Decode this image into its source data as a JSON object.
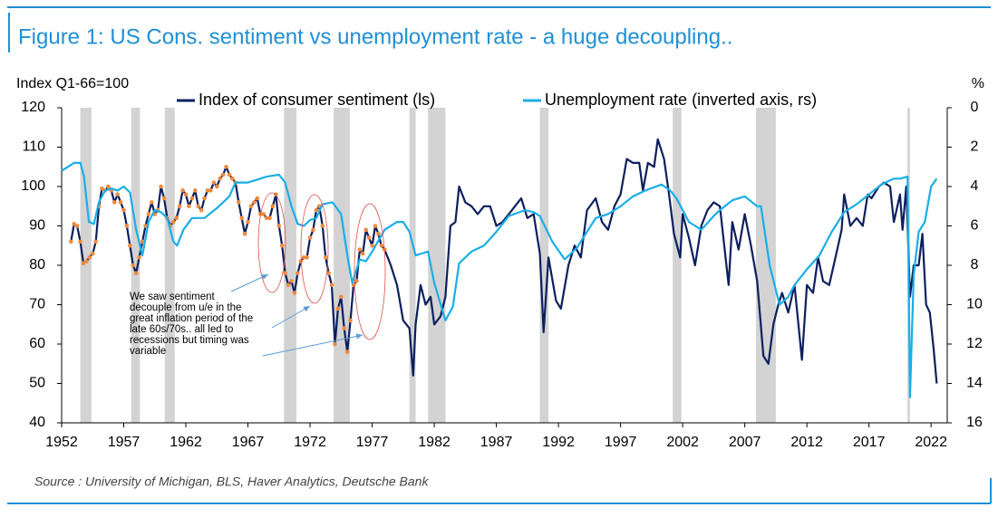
{
  "chart_data": {
    "type": "line",
    "title": "Figure 1: US Cons. sentiment vs unemployment rate - a huge decoupling..",
    "y_label": "Index Q1-66=100",
    "y2_label": "%",
    "source": "Source : University of Michigan, BLS, Haver Analytics, Deutsche Bank",
    "annotation": [
      "We saw sentiment",
      "decouple from u/e in the",
      "great inflation period of the",
      "late 60s/70s.. all led to",
      "recessions but timing was",
      "variable"
    ],
    "legend": "top",
    "xlim": [
      1952,
      2023.3
    ],
    "xticks": [
      1952,
      1957,
      1962,
      1967,
      1972,
      1977,
      1982,
      1987,
      1992,
      1997,
      2002,
      2007,
      2012,
      2017,
      2022
    ],
    "ylim": [
      40,
      120
    ],
    "yticks": [
      40,
      50,
      60,
      70,
      80,
      90,
      100,
      110,
      120
    ],
    "y2lim": [
      0,
      16
    ],
    "y2_inverted": true,
    "y2ticks": [
      0,
      2,
      4,
      6,
      8,
      10,
      12,
      14,
      16
    ],
    "recession_color": "#d3d3d3",
    "recessions": [
      [
        1953.5,
        1954.4
      ],
      [
        1957.6,
        1958.3
      ],
      [
        1960.3,
        1961.1
      ],
      [
        1969.9,
        1970.9
      ],
      [
        1973.9,
        1975.2
      ],
      [
        1980.0,
        1980.5
      ],
      [
        1981.5,
        1982.9
      ],
      [
        1990.5,
        1991.2
      ],
      [
        2001.2,
        2001.9
      ],
      [
        2007.9,
        2009.5
      ],
      [
        2020.1,
        2020.3
      ]
    ],
    "series": [
      {
        "name": "Index of consumer sentiment (ls)",
        "color": "#0b1f5e",
        "marker_color": "#f08a3c",
        "marker_xlim": [
          1952,
          1978
        ],
        "x": [
          1952.75,
          1953,
          1953.25,
          1953.5,
          1953.75,
          1954,
          1954.25,
          1954.5,
          1954.75,
          1955,
          1955.25,
          1955.5,
          1955.75,
          1956,
          1956.25,
          1956.5,
          1956.75,
          1957,
          1957.25,
          1957.5,
          1957.75,
          1958,
          1958.25,
          1958.5,
          1958.75,
          1959,
          1959.25,
          1959.5,
          1959.75,
          1960,
          1960.25,
          1960.5,
          1960.75,
          1961,
          1961.25,
          1961.5,
          1961.75,
          1962,
          1962.25,
          1962.5,
          1962.75,
          1963,
          1963.25,
          1963.5,
          1963.75,
          1964,
          1964.25,
          1964.5,
          1964.75,
          1965,
          1965.25,
          1965.5,
          1965.75,
          1966,
          1966.25,
          1966.5,
          1966.75,
          1967,
          1967.25,
          1967.5,
          1967.75,
          1968,
          1968.25,
          1968.5,
          1968.75,
          1969,
          1969.25,
          1969.5,
          1969.75,
          1970,
          1970.25,
          1970.5,
          1970.75,
          1971,
          1971.25,
          1971.5,
          1971.75,
          1972,
          1972.25,
          1972.5,
          1972.75,
          1973,
          1973.25,
          1973.5,
          1973.75,
          1974,
          1974.25,
          1974.5,
          1974.75,
          1975,
          1975.25,
          1975.5,
          1975.75,
          1976,
          1976.25,
          1976.5,
          1976.75,
          1977,
          1977.25,
          1977.5,
          1977.75,
          1978,
          1978.5,
          1979,
          1979.5,
          1980,
          1980.3,
          1980.5,
          1980.9,
          1981.3,
          1981.7,
          1982,
          1982.5,
          1982.9,
          1983.3,
          1983.7,
          1984,
          1984.5,
          1985,
          1985.5,
          1986,
          1986.5,
          1987,
          1987.5,
          1988,
          1988.5,
          1989,
          1989.5,
          1990,
          1990.5,
          1990.8,
          1991.2,
          1991.8,
          1992.2,
          1992.8,
          1993.3,
          1993.8,
          1994.3,
          1995,
          1995.5,
          1996,
          1996.5,
          1997,
          1997.5,
          1998,
          1998.5,
          1998.8,
          1999.2,
          1999.7,
          2000,
          2000.5,
          2000.9,
          2001.3,
          2001.8,
          2002,
          2002.5,
          2003,
          2003.5,
          2004,
          2004.5,
          2005,
          2005.7,
          2006,
          2006.5,
          2007,
          2007.5,
          2008,
          2008.5,
          2008.9,
          2009.3,
          2009.7,
          2010,
          2010.5,
          2011,
          2011.6,
          2012,
          2012.5,
          2012.9,
          2013.3,
          2013.8,
          2014.3,
          2014.8,
          2015,
          2015.5,
          2016,
          2016.5,
          2016.9,
          2017.2,
          2017.8,
          2018.2,
          2018.7,
          2019,
          2019.5,
          2019.7,
          2020,
          2020.3,
          2020.6,
          2021,
          2021.3,
          2021.6,
          2021.9,
          2022.2,
          2022.45
        ],
        "values": [
          86,
          90.5,
          90,
          86,
          80.5,
          81,
          82,
          83,
          86,
          95,
          99.5,
          99,
          100,
          99,
          96,
          98,
          96,
          94,
          90,
          85,
          80,
          78,
          82,
          86,
          90,
          93,
          96,
          93,
          94,
          100,
          97,
          92,
          90,
          91,
          92,
          95,
          99,
          98,
          95,
          97,
          99,
          95,
          94,
          97,
          99,
          99,
          101,
          100,
          102,
          103,
          105,
          103,
          102,
          101,
          96,
          92,
          88,
          91,
          95,
          96,
          97,
          93,
          93,
          92,
          92,
          95,
          98,
          90,
          85,
          78,
          75,
          76,
          73,
          78,
          81,
          82,
          82,
          87,
          89,
          94,
          95,
          90,
          82,
          78,
          75,
          60,
          69,
          72,
          64,
          58,
          66,
          75,
          76,
          84,
          83,
          89,
          87,
          85,
          90,
          88,
          85,
          84,
          80,
          75,
          66,
          64,
          52,
          65,
          75,
          70,
          72,
          65,
          67,
          72,
          90,
          91,
          100,
          96,
          95,
          93,
          95,
          95,
          90,
          91,
          93,
          95,
          97,
          92,
          93,
          83,
          63,
          82,
          71,
          69,
          80,
          85,
          82,
          94,
          97,
          91,
          89,
          95,
          98,
          107,
          106,
          106,
          99,
          106,
          105,
          112,
          107,
          98,
          88,
          82,
          93,
          87,
          80,
          90,
          94,
          96,
          95,
          75,
          91,
          84,
          93,
          85,
          76,
          57,
          55,
          65,
          70,
          73,
          68,
          75,
          56,
          75,
          73,
          82,
          76,
          75,
          82,
          89,
          98,
          90,
          92,
          90,
          98,
          97,
          100,
          101,
          100,
          91,
          98,
          89,
          100,
          72,
          80,
          80,
          88,
          70,
          68,
          59,
          50
        ]
      },
      {
        "name": "Unemployment rate (inverted axis, rs)",
        "color": "#19aee8",
        "axis": "y2",
        "x": [
          1952,
          1952.5,
          1953,
          1953.5,
          1953.8,
          1954.2,
          1954.6,
          1955,
          1955.5,
          1956,
          1956.5,
          1957,
          1957.5,
          1958,
          1958.5,
          1959,
          1959.5,
          1960,
          1960.5,
          1961,
          1961.3,
          1961.8,
          1962.5,
          1963.5,
          1964.5,
          1965.5,
          1966,
          1967,
          1968,
          1968.5,
          1969.5,
          1970,
          1970.5,
          1971,
          1971.5,
          1972,
          1972.5,
          1973,
          1973.8,
          1974.5,
          1975,
          1975.4,
          1976,
          1976.5,
          1977,
          1978,
          1979,
          1979.5,
          1980,
          1980.5,
          1981,
          1981.5,
          1982,
          1982.9,
          1983.5,
          1984,
          1985,
          1986,
          1987,
          1988,
          1989.3,
          1990,
          1990.5,
          1991.5,
          1992.5,
          1993.5,
          1994,
          1995,
          1996,
          1997,
          1998,
          1999,
          2000.3,
          2001,
          2001.5,
          2002.5,
          2003.5,
          2004.5,
          2005,
          2006,
          2007,
          2008,
          2008.3,
          2009,
          2009.8,
          2010.5,
          2011,
          2012,
          2013,
          2014,
          2015,
          2016,
          2017,
          2018,
          2019,
          2019.5,
          2020.1,
          2020.3,
          2020.6,
          2021,
          2021.5,
          2022,
          2022.45
        ],
        "values": [
          3.2,
          3,
          2.8,
          2.8,
          3.5,
          5.8,
          5.9,
          4.8,
          4.2,
          4.1,
          4.2,
          4.0,
          4.3,
          6.2,
          7.5,
          5.8,
          5.2,
          5.3,
          5.6,
          6.8,
          7.0,
          6.2,
          5.6,
          5.6,
          5.1,
          4.5,
          3.8,
          3.8,
          3.6,
          3.5,
          3.4,
          3.8,
          5.0,
          5.9,
          6.0,
          5.7,
          5.6,
          4.9,
          4.8,
          5.4,
          7.5,
          8.9,
          7.7,
          7.8,
          7.3,
          6.2,
          5.8,
          5.8,
          6.3,
          7.5,
          7.4,
          7.3,
          8.9,
          10.8,
          10.1,
          7.9,
          7.3,
          7.0,
          6.3,
          5.5,
          5.2,
          5.3,
          5.5,
          6.8,
          7.7,
          7.1,
          6.6,
          5.6,
          5.4,
          5.0,
          4.5,
          4.2,
          3.9,
          4.2,
          4.6,
          5.8,
          6.2,
          5.5,
          5.2,
          4.7,
          4.5,
          5.0,
          5.0,
          8.0,
          10.0,
          9.6,
          9.0,
          8.2,
          7.5,
          6.3,
          5.3,
          4.9,
          4.4,
          3.9,
          3.6,
          3.6,
          3.5,
          14.7,
          8.5,
          6.3,
          5.8,
          4.0,
          3.6
        ]
      }
    ]
  }
}
